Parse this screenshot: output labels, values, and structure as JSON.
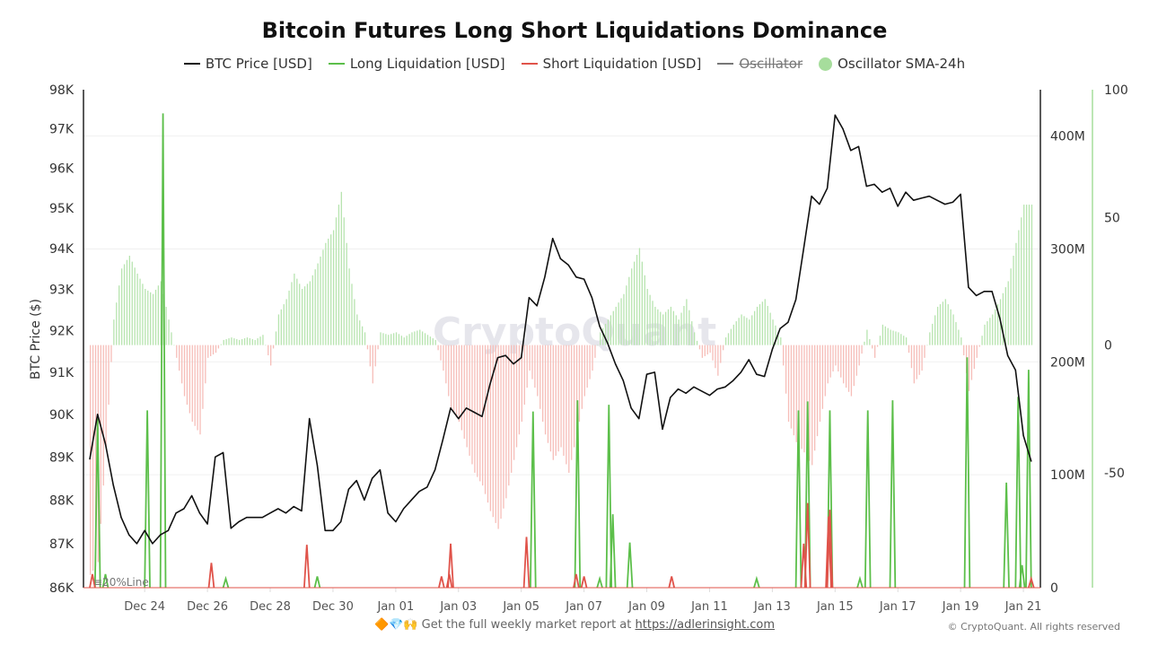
{
  "chart_data": {
    "type": "line",
    "title": "Bitcoin Futures Long Short Liquidations Dominance",
    "legend": {
      "placement": "top",
      "entries": [
        {
          "name": "BTC Price [USD]",
          "color": "#111111",
          "marker": "line"
        },
        {
          "name": "Long Liquidation [USD]",
          "color": "#5cbf4a",
          "marker": "line"
        },
        {
          "name": "Short Liquidation [USD]",
          "color": "#e0534a",
          "marker": "line"
        },
        {
          "name": "Oscillator",
          "color": "#777777",
          "marker": "line",
          "hidden": true
        },
        {
          "name": "Oscillator SMA-24h",
          "color": "#a6dd9c",
          "marker": "dot"
        }
      ]
    },
    "x_axis": {
      "type": "time",
      "ticks": [
        "Dec 24",
        "Dec 26",
        "Dec 28",
        "Dec 30",
        "Jan 01",
        "Jan 03",
        "Jan 05",
        "Jan 07",
        "Jan 09",
        "Jan 11",
        "Jan 13",
        "Jan 15",
        "Jan 17",
        "Jan 19",
        "Jan 21"
      ]
    },
    "y_axis_left": {
      "label": "BTC Price ($)",
      "scale": "log",
      "ylim": [
        86000,
        98000
      ],
      "ticks": [
        "98K",
        "97K",
        "96K",
        "95K",
        "94K",
        "93K",
        "92K",
        "91K",
        "90K",
        "89K",
        "88K",
        "87K",
        "86K"
      ],
      "tick_values": [
        98000,
        97000,
        96000,
        95000,
        94000,
        93000,
        92000,
        91000,
        90000,
        89000,
        88000,
        87000,
        86000
      ]
    },
    "y_axis_right": {
      "ylim": [
        0,
        441
      ],
      "unit": "M USD",
      "ticks": [
        "400M",
        "300M",
        "200M",
        "100M",
        "0"
      ],
      "tick_values": [
        400,
        300,
        200,
        100,
        0
      ],
      "grid": true
    },
    "y_axis_oscillator": {
      "ylim": [
        -95,
        100
      ],
      "ticks": [
        "100",
        "50",
        "0",
        "-50"
      ],
      "tick_values": [
        100,
        50,
        0,
        -50
      ]
    },
    "reference_label": "≡20%Line",
    "watermark": "CryptoQuant",
    "sampling": {
      "start": "Dec 22 06:00",
      "interval_hours": 6
    },
    "price": [
      88950,
      90000,
      89300,
      88350,
      87600,
      87200,
      87000,
      87300,
      87000,
      87200,
      87300,
      87700,
      87800,
      88100,
      87700,
      87450,
      89000,
      89100,
      87350,
      87500,
      87600,
      87600,
      87600,
      87700,
      87800,
      87700,
      87850,
      87750,
      89900,
      88800,
      87300,
      87300,
      87500,
      88250,
      88450,
      88000,
      88500,
      88700,
      87700,
      87500,
      87800,
      88000,
      88200,
      88300,
      88700,
      89400,
      90150,
      89900,
      90150,
      90050,
      89950,
      90700,
      91350,
      91400,
      91200,
      91350,
      92800,
      92600,
      93300,
      94250,
      93750,
      93600,
      93300,
      93250,
      92800,
      92100,
      91700,
      91200,
      90800,
      90150,
      89900,
      90950,
      91000,
      89650,
      90400,
      90600,
      90500,
      90650,
      90550,
      90450,
      90600,
      90650,
      90800,
      91000,
      91300,
      90950,
      90900,
      91550,
      92050,
      92200,
      92750,
      94000,
      95300,
      95100,
      95500,
      97350,
      97000,
      96450,
      96550,
      95550,
      95600,
      95400,
      95500,
      95050,
      95400,
      95200,
      95250,
      95300,
      95200,
      95100,
      95150,
      95350,
      93050,
      92850,
      92950,
      92950,
      92300,
      91400,
      91050,
      89500,
      88900
    ],
    "oscillator_sma_24h": [
      -90,
      -85,
      -40,
      10,
      30,
      35,
      28,
      22,
      20,
      25,
      10,
      -5,
      -20,
      -30,
      -35,
      -5,
      -3,
      2,
      3,
      2,
      3,
      2,
      4,
      -8,
      12,
      18,
      28,
      22,
      25,
      32,
      40,
      45,
      60,
      30,
      12,
      5,
      -15,
      5,
      4,
      5,
      3,
      5,
      6,
      4,
      2,
      -10,
      -25,
      -30,
      -40,
      -50,
      -55,
      -65,
      -72,
      -60,
      -45,
      -30,
      -10,
      -20,
      -35,
      -45,
      -40,
      -50,
      -35,
      -20,
      -10,
      5,
      10,
      15,
      20,
      30,
      38,
      22,
      15,
      12,
      15,
      10,
      18,
      5,
      -5,
      -3,
      -12,
      3,
      8,
      12,
      10,
      15,
      18,
      10,
      3,
      -30,
      -38,
      -42,
      -47,
      -30,
      -15,
      -8,
      -15,
      -20,
      -8,
      6,
      -5,
      8,
      6,
      5,
      3,
      -15,
      -10,
      5,
      15,
      18,
      12,
      3,
      -18,
      -5,
      8,
      12,
      18,
      25,
      40,
      55,
      55
    ],
    "long_liquidation_spikes_musd": [
      {
        "t": "Dec 22 12:00",
        "v": 150
      },
      {
        "t": "Dec 22 18:00",
        "v": 12
      },
      {
        "t": "Dec 24 02:00",
        "v": 157
      },
      {
        "t": "Dec 24 14:00",
        "v": 420
      },
      {
        "t": "Dec 26 14:00",
        "v": 8
      },
      {
        "t": "Dec 29 12:00",
        "v": 10
      },
      {
        "t": "Jan 05 09:00",
        "v": 156
      },
      {
        "t": "Jan 06 19:00",
        "v": 166
      },
      {
        "t": "Jan 07 12:00",
        "v": 8
      },
      {
        "t": "Jan 07 19:00",
        "v": 162
      },
      {
        "t": "Jan 07 22:00",
        "v": 65
      },
      {
        "t": "Jan 08 11:00",
        "v": 40
      },
      {
        "t": "Jan 12 12:00",
        "v": 8
      },
      {
        "t": "Jan 13 20:00",
        "v": 157
      },
      {
        "t": "Jan 14 03:00",
        "v": 165
      },
      {
        "t": "Jan 14 20:00",
        "v": 157
      },
      {
        "t": "Jan 15 19:00",
        "v": 8
      },
      {
        "t": "Jan 16 01:00",
        "v": 157
      },
      {
        "t": "Jan 16 20:00",
        "v": 166
      },
      {
        "t": "Jan 19 05:00",
        "v": 204
      },
      {
        "t": "Jan 20 11:00",
        "v": 93
      },
      {
        "t": "Jan 20 20:00",
        "v": 169
      },
      {
        "t": "Jan 20 23:00",
        "v": 20
      },
      {
        "t": "Jan 21 04:00",
        "v": 193
      }
    ],
    "short_liquidation_spikes_musd": [
      {
        "t": "Dec 22 08:00",
        "v": 12
      },
      {
        "t": "Dec 26 03:00",
        "v": 22
      },
      {
        "t": "Dec 29 04:00",
        "v": 38
      },
      {
        "t": "Jan 02 11:00",
        "v": 10
      },
      {
        "t": "Jan 02 17:00",
        "v": 12
      },
      {
        "t": "Jan 02 18:00",
        "v": 39
      },
      {
        "t": "Jan 05 04:00",
        "v": 45
      },
      {
        "t": "Jan 06 18:00",
        "v": 12
      },
      {
        "t": "Jan 07 00:00",
        "v": 10
      },
      {
        "t": "Jan 09 19:00",
        "v": 10
      },
      {
        "t": "Jan 14 00:00",
        "v": 39
      },
      {
        "t": "Jan 14 03:00",
        "v": 75
      },
      {
        "t": "Jan 14 19:00",
        "v": 63
      },
      {
        "t": "Jan 14 20:00",
        "v": 69
      },
      {
        "t": "Jan 21 06:00",
        "v": 8
      }
    ],
    "colors": {
      "price": "#111111",
      "long": "#5cbf4a",
      "short": "#e0534a",
      "osc_pos": "#b7e4af",
      "osc_neg": "#f6bdb8",
      "osc_axis": "#a6dd9c"
    }
  },
  "footer": {
    "emojis": "🔶💎🙌",
    "text": "Get the full weekly market report at",
    "link": "https://adlerinsight.com",
    "copyright": "© CryptoQuant. All rights reserved"
  }
}
